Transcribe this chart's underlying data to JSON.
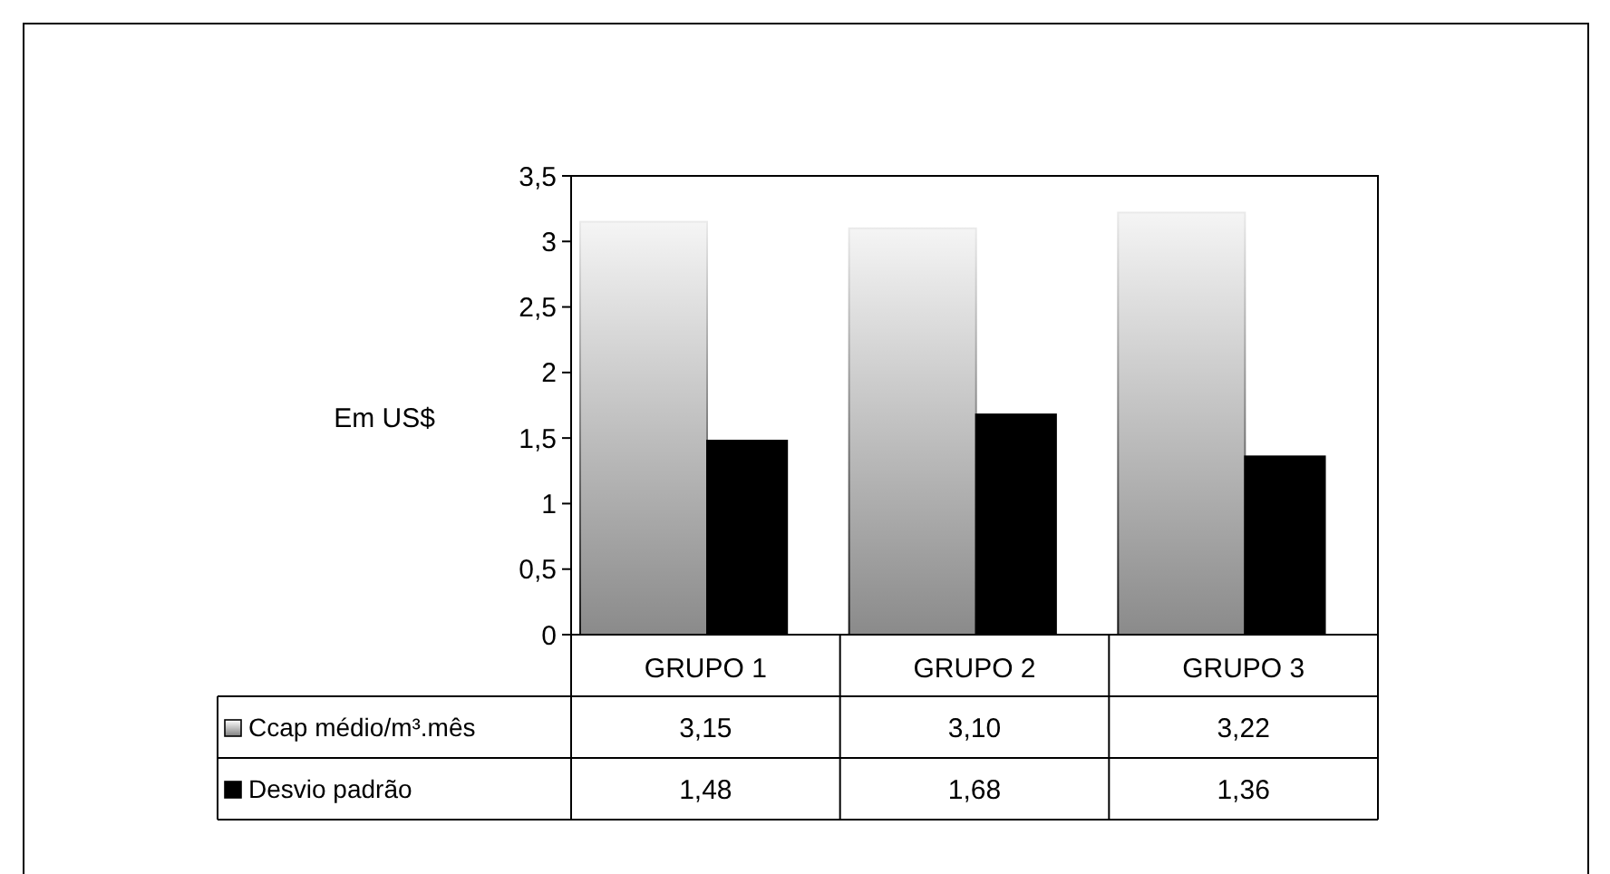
{
  "chart_data": {
    "type": "bar",
    "ylabel": "Em US$",
    "categories": [
      "GRUPO 1",
      "GRUPO 2",
      "GRUPO 3"
    ],
    "series": [
      {
        "name": "Ccap médio/m³.mês",
        "color": "#808080",
        "values": [
          3.15,
          3.1,
          3.22
        ],
        "value_labels": [
          "3,15",
          "3,10",
          "3,22"
        ]
      },
      {
        "name": "Desvio padrão",
        "color": "#000000",
        "values": [
          1.48,
          1.68,
          1.36
        ],
        "value_labels": [
          "1,48",
          "1,68",
          "1,36"
        ]
      }
    ],
    "ylim": [
      0,
      3.5
    ],
    "yticks": [
      0,
      {
        "value": 0.5,
        "label": "0,5"
      },
      1,
      {
        "value": 1.5,
        "label": "1,5"
      },
      2,
      {
        "value": 2.5,
        "label": "2,5"
      },
      3,
      {
        "value": 3.5,
        "label": "3,5"
      }
    ],
    "grid": false,
    "legend": "bottom"
  }
}
